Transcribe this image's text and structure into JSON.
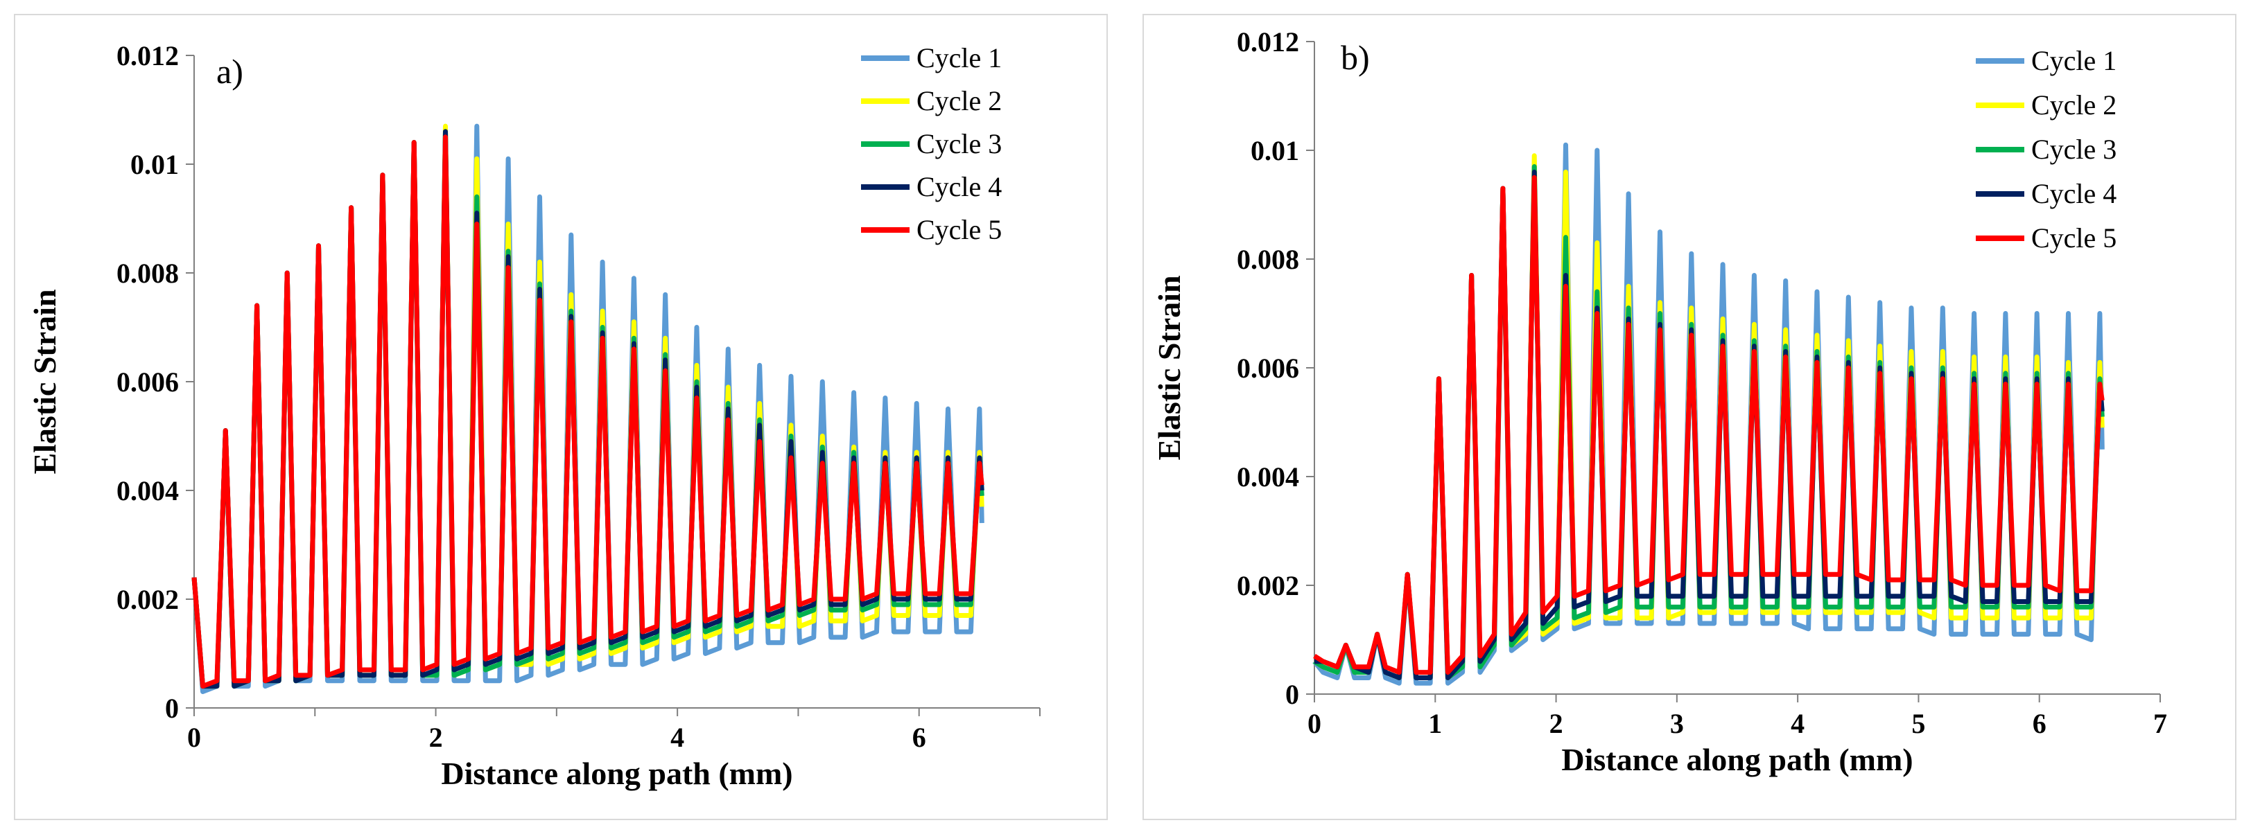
{
  "colors": {
    "cycle1": "#5B9BD5",
    "cycle2": "#FFFF00",
    "cycle3": "#00B050",
    "cycle4": "#002060",
    "cycle5": "#FF0000"
  },
  "chart_data": [
    {
      "type": "line",
      "panel_label": "a)",
      "xlabel": "Distance along path (mm)",
      "ylabel": "Elastic  Strain",
      "xlim": [
        0,
        7
      ],
      "ylim": [
        0,
        0.012
      ],
      "x_ticks": [
        "0",
        "2",
        "4",
        "6"
      ],
      "y_ticks": [
        "0",
        "0.002",
        "0.004",
        "0.006",
        "0.008",
        "0.01",
        "0.012"
      ],
      "legend_position": "top-right",
      "peak_x": [
        0.0,
        0.26,
        0.52,
        0.77,
        1.03,
        1.3,
        1.56,
        1.82,
        2.08,
        2.34,
        2.6,
        2.86,
        3.12,
        3.38,
        3.64,
        3.9,
        4.16,
        4.42,
        4.68,
        4.94,
        5.2,
        5.46,
        5.72,
        5.98,
        6.24,
        6.5
      ],
      "series": [
        {
          "name": "Cycle 1",
          "peaks": [
            0.0024,
            0.0051,
            0.0074,
            0.008,
            0.0085,
            0.0092,
            0.0098,
            0.0104,
            0.0106,
            0.0107,
            0.0101,
            0.0094,
            0.0087,
            0.0082,
            0.0079,
            0.0076,
            0.007,
            0.0066,
            0.0063,
            0.0061,
            0.006,
            0.0058,
            0.0057,
            0.0056,
            0.0055,
            0.0055
          ],
          "baseline": [
            0.0003,
            0.0004,
            0.0004,
            0.0005,
            0.0005,
            0.0005,
            0.0005,
            0.0005,
            0.0005,
            0.0005,
            0.0005,
            0.0006,
            0.0007,
            0.0008,
            0.0008,
            0.0009,
            0.001,
            0.0011,
            0.0012,
            0.0012,
            0.0013,
            0.0013,
            0.0014,
            0.0014,
            0.0014,
            0.0014
          ]
        },
        {
          "name": "Cycle 2",
          "peaks": [
            0.0024,
            0.0051,
            0.0074,
            0.008,
            0.0085,
            0.0092,
            0.0098,
            0.0104,
            0.0107,
            0.0101,
            0.0089,
            0.0082,
            0.0076,
            0.0073,
            0.0071,
            0.0068,
            0.0063,
            0.0059,
            0.0056,
            0.0052,
            0.005,
            0.0048,
            0.0047,
            0.0047,
            0.0047,
            0.0047
          ],
          "baseline": [
            0.0004,
            0.0004,
            0.0005,
            0.0005,
            0.0006,
            0.0006,
            0.0006,
            0.0006,
            0.0006,
            0.0007,
            0.0008,
            0.0008,
            0.0009,
            0.001,
            0.0011,
            0.0012,
            0.0013,
            0.0014,
            0.0015,
            0.0015,
            0.0016,
            0.0016,
            0.0017,
            0.0017,
            0.0017,
            0.0017
          ]
        },
        {
          "name": "Cycle 3",
          "peaks": [
            0.0024,
            0.0051,
            0.0074,
            0.008,
            0.0085,
            0.0092,
            0.0098,
            0.0104,
            0.0106,
            0.0094,
            0.0084,
            0.0078,
            0.0073,
            0.007,
            0.0068,
            0.0065,
            0.006,
            0.0056,
            0.0053,
            0.005,
            0.0048,
            0.0047,
            0.0046,
            0.0046,
            0.0046,
            0.0046
          ],
          "baseline": [
            0.0004,
            0.0004,
            0.0005,
            0.0005,
            0.0006,
            0.0006,
            0.0006,
            0.0006,
            0.0006,
            0.0007,
            0.0008,
            0.0009,
            0.001,
            0.0011,
            0.0012,
            0.0013,
            0.0014,
            0.0015,
            0.0016,
            0.0017,
            0.0018,
            0.0018,
            0.0019,
            0.0019,
            0.0019,
            0.0019
          ]
        },
        {
          "name": "Cycle 4",
          "peaks": [
            0.0024,
            0.0051,
            0.0074,
            0.008,
            0.0085,
            0.0092,
            0.0098,
            0.0104,
            0.0106,
            0.0091,
            0.0083,
            0.0077,
            0.0072,
            0.0069,
            0.0067,
            0.0064,
            0.0059,
            0.0055,
            0.0052,
            0.0049,
            0.0047,
            0.0046,
            0.0046,
            0.0046,
            0.0046,
            0.0046
          ],
          "baseline": [
            0.0004,
            0.0004,
            0.0005,
            0.0005,
            0.0006,
            0.0006,
            0.0006,
            0.0006,
            0.0007,
            0.0008,
            0.0009,
            0.001,
            0.0011,
            0.0012,
            0.0013,
            0.0014,
            0.0015,
            0.0016,
            0.0017,
            0.0018,
            0.0019,
            0.0019,
            0.002,
            0.002,
            0.002,
            0.002
          ]
        },
        {
          "name": "Cycle 5",
          "peaks": [
            0.0024,
            0.0051,
            0.0074,
            0.008,
            0.0085,
            0.0092,
            0.0098,
            0.0104,
            0.0105,
            0.0089,
            0.0081,
            0.0075,
            0.0071,
            0.0068,
            0.0066,
            0.0062,
            0.0057,
            0.0053,
            0.0049,
            0.0046,
            0.0045,
            0.0045,
            0.0045,
            0.0045,
            0.0045,
            0.0045
          ],
          "baseline": [
            0.0004,
            0.0005,
            0.0005,
            0.0006,
            0.0006,
            0.0007,
            0.0007,
            0.0007,
            0.0008,
            0.0009,
            0.001,
            0.0011,
            0.0012,
            0.0013,
            0.0014,
            0.0015,
            0.0016,
            0.0017,
            0.0018,
            0.0019,
            0.002,
            0.002,
            0.0021,
            0.0021,
            0.0021,
            0.0021
          ]
        }
      ]
    },
    {
      "type": "line",
      "panel_label": "b)",
      "xlabel": "Distance along path (mm)",
      "ylabel": "Elastic  Strain",
      "xlim": [
        0,
        7
      ],
      "ylim": [
        0,
        0.012
      ],
      "x_ticks": [
        "0",
        "1",
        "2",
        "3",
        "4",
        "5",
        "6",
        "7"
      ],
      "y_ticks": [
        "0",
        "0.002",
        "0.004",
        "0.006",
        "0.008",
        "0.01",
        "0.012"
      ],
      "legend_position": "top-right",
      "peak_x": [
        0.0,
        0.26,
        0.52,
        0.77,
        1.03,
        1.3,
        1.56,
        1.82,
        2.08,
        2.34,
        2.6,
        2.86,
        3.12,
        3.38,
        3.64,
        3.9,
        4.16,
        4.42,
        4.68,
        4.94,
        5.2,
        5.46,
        5.72,
        5.98,
        6.24,
        6.5
      ],
      "series": [
        {
          "name": "Cycle 1",
          "peaks": [
            0.0006,
            0.0009,
            0.0011,
            0.0022,
            0.0058,
            0.0077,
            0.0093,
            0.0097,
            0.0101,
            0.01,
            0.0092,
            0.0085,
            0.0081,
            0.0079,
            0.0077,
            0.0076,
            0.0074,
            0.0073,
            0.0072,
            0.0071,
            0.0071,
            0.007,
            0.007,
            0.007,
            0.007,
            0.007
          ],
          "baseline": [
            0.0004,
            0.0003,
            0.0003,
            0.0002,
            0.0002,
            0.0004,
            0.0008,
            0.001,
            0.0012,
            0.0013,
            0.0013,
            0.0013,
            0.0013,
            0.0013,
            0.0013,
            0.0013,
            0.0012,
            0.0012,
            0.0012,
            0.0012,
            0.0011,
            0.0011,
            0.0011,
            0.0011,
            0.0011,
            0.001
          ]
        },
        {
          "name": "Cycle 2",
          "peaks": [
            0.0006,
            0.0009,
            0.0011,
            0.0022,
            0.0058,
            0.0077,
            0.0093,
            0.0099,
            0.0096,
            0.0083,
            0.0075,
            0.0072,
            0.0071,
            0.0069,
            0.0068,
            0.0067,
            0.0066,
            0.0065,
            0.0064,
            0.0063,
            0.0063,
            0.0062,
            0.0062,
            0.0062,
            0.0061,
            0.0061
          ],
          "baseline": [
            0.0005,
            0.0004,
            0.0004,
            0.0003,
            0.0003,
            0.0005,
            0.0009,
            0.0011,
            0.0013,
            0.0014,
            0.0014,
            0.0014,
            0.0015,
            0.0015,
            0.0015,
            0.0015,
            0.0015,
            0.0015,
            0.0015,
            0.0015,
            0.0014,
            0.0014,
            0.0014,
            0.0014,
            0.0014,
            0.0014
          ]
        },
        {
          "name": "Cycle 3",
          "peaks": [
            0.0006,
            0.0009,
            0.0011,
            0.0022,
            0.0058,
            0.0077,
            0.0093,
            0.0097,
            0.0084,
            0.0074,
            0.0071,
            0.007,
            0.0068,
            0.0066,
            0.0065,
            0.0064,
            0.0063,
            0.0062,
            0.0061,
            0.006,
            0.006,
            0.0059,
            0.0059,
            0.0059,
            0.0059,
            0.0058
          ],
          "baseline": [
            0.0005,
            0.0004,
            0.0004,
            0.0003,
            0.0003,
            0.0005,
            0.0009,
            0.0012,
            0.0014,
            0.0015,
            0.0016,
            0.0016,
            0.0016,
            0.0016,
            0.0016,
            0.0016,
            0.0016,
            0.0016,
            0.0016,
            0.0016,
            0.0016,
            0.0016,
            0.0016,
            0.0016,
            0.0016,
            0.0016
          ]
        },
        {
          "name": "Cycle 4",
          "peaks": [
            0.0006,
            0.0009,
            0.0011,
            0.0022,
            0.0058,
            0.0077,
            0.0093,
            0.0096,
            0.0077,
            0.0071,
            0.0069,
            0.0068,
            0.0067,
            0.0065,
            0.0064,
            0.0063,
            0.0062,
            0.0061,
            0.006,
            0.0059,
            0.0059,
            0.0058,
            0.0058,
            0.0058,
            0.0058,
            0.0057
          ],
          "baseline": [
            0.0006,
            0.0005,
            0.0004,
            0.0003,
            0.0003,
            0.0006,
            0.001,
            0.0013,
            0.0016,
            0.0017,
            0.0018,
            0.0018,
            0.0018,
            0.0018,
            0.0018,
            0.0018,
            0.0018,
            0.0018,
            0.0018,
            0.0018,
            0.0018,
            0.0017,
            0.0017,
            0.0017,
            0.0017,
            0.0017
          ]
        },
        {
          "name": "Cycle 5",
          "peaks": [
            0.0007,
            0.0009,
            0.0011,
            0.0022,
            0.0058,
            0.0077,
            0.0093,
            0.0095,
            0.0075,
            0.007,
            0.0068,
            0.0067,
            0.0066,
            0.0064,
            0.0063,
            0.0062,
            0.0061,
            0.006,
            0.0059,
            0.0058,
            0.0058,
            0.0057,
            0.0057,
            0.0057,
            0.0057,
            0.0057
          ],
          "baseline": [
            0.0006,
            0.0005,
            0.0005,
            0.0004,
            0.0004,
            0.0007,
            0.0011,
            0.0015,
            0.0018,
            0.0019,
            0.002,
            0.0021,
            0.0022,
            0.0022,
            0.0022,
            0.0022,
            0.0022,
            0.0022,
            0.0021,
            0.0021,
            0.0021,
            0.002,
            0.002,
            0.002,
            0.0019,
            0.0019
          ]
        }
      ]
    }
  ]
}
